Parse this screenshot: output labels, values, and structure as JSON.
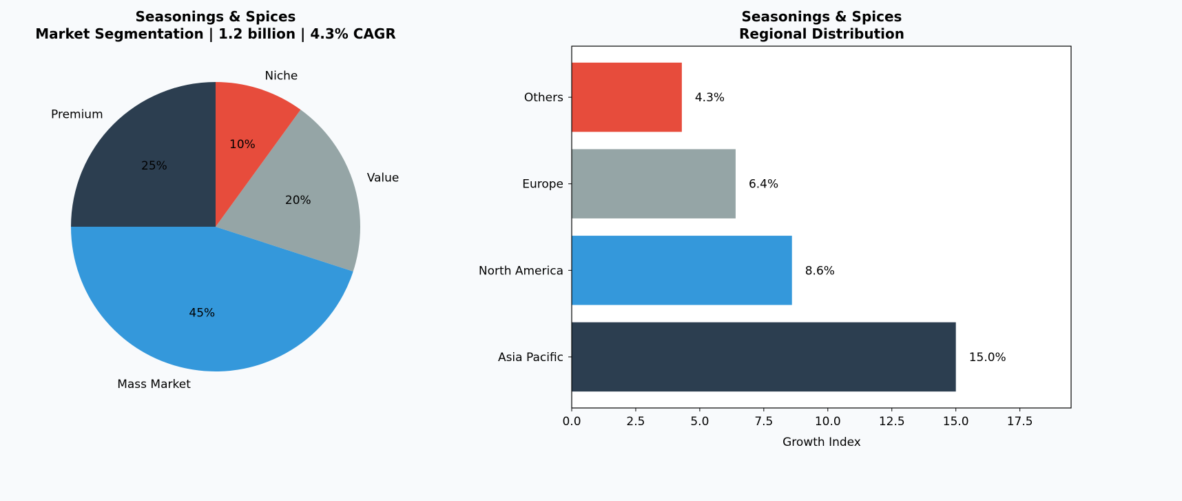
{
  "background": "#f8fafc",
  "chart_data": [
    {
      "type": "pie",
      "title": [
        "Seasonings & Spices",
        "Market Segmentation | 1.2 billion | 4.3% CAGR"
      ],
      "labels": [
        "Premium",
        "Mass Market",
        "Value",
        "Niche"
      ],
      "values": [
        25,
        45,
        20,
        10
      ],
      "pct_labels": [
        "25%",
        "45%",
        "20%",
        "10%"
      ],
      "colors": [
        "#2c3e50",
        "#3498db",
        "#95a5a6",
        "#e74c3c"
      ],
      "start_angle": 90,
      "direction": "counterclockwise"
    },
    {
      "type": "bar",
      "orientation": "horizontal",
      "title": [
        "Seasonings & Spices",
        "Regional Distribution"
      ],
      "categories": [
        "Asia Pacific",
        "North America",
        "Europe",
        "Others"
      ],
      "values": [
        15.0,
        8.6,
        6.4,
        4.3
      ],
      "value_labels": [
        "15.0%",
        "8.6%",
        "6.4%",
        "4.3%"
      ],
      "colors": [
        "#2c3e50",
        "#3498db",
        "#95a5a6",
        "#e74c3c"
      ],
      "xlabel": "Growth Index",
      "xlim": [
        0,
        19.5
      ],
      "xticks": [
        0,
        2.5,
        5,
        7.5,
        10,
        12.5,
        15,
        17.5
      ],
      "xtick_labels": [
        "0.0",
        "2.5",
        "5.0",
        "7.5",
        "10.0",
        "12.5",
        "15.0",
        "17.5"
      ],
      "grid": false
    }
  ]
}
